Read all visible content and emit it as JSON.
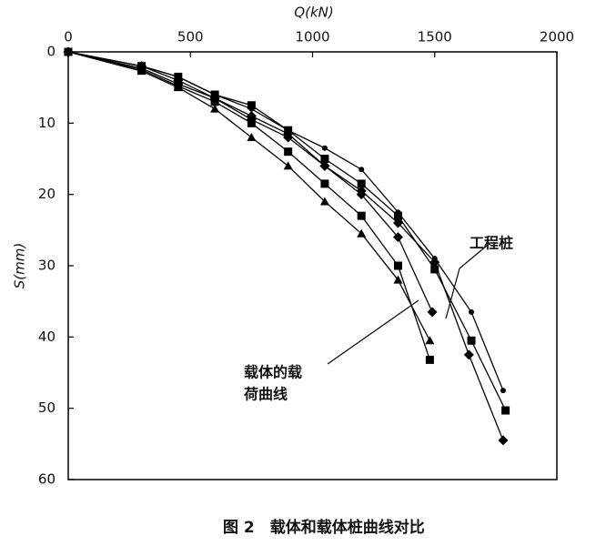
{
  "chart_data": {
    "type": "line",
    "x_label": "Q(kN)",
    "y_label": "S(mm)",
    "xlim": [
      0,
      2000
    ],
    "xticks": [
      0,
      500,
      1000,
      1500,
      2000
    ],
    "ylim": [
      0,
      60
    ],
    "yticks": [
      0,
      10,
      20,
      30,
      40,
      50,
      60
    ],
    "y_inverted": true,
    "x_axis_position": "top",
    "series": [
      {
        "color": "#000000",
        "marker": "triangle",
        "x": [
          0,
          300,
          450,
          600,
          750,
          900,
          1050,
          1200,
          1350,
          1480
        ],
        "values": [
          0,
          2.7,
          5,
          8,
          12,
          16,
          21,
          25.5,
          32,
          40.5
        ]
      },
      {
        "color": "#000000",
        "marker": "square",
        "x": [
          0,
          300,
          450,
          600,
          750,
          900,
          1050,
          1200,
          1350,
          1480
        ],
        "values": [
          0,
          2.5,
          4.8,
          7,
          10,
          14,
          18.5,
          23,
          30,
          43.2
        ]
      },
      {
        "color": "#000000",
        "marker": "diamond",
        "x": [
          0,
          300,
          450,
          600,
          750,
          900,
          1050,
          1200,
          1350,
          1490
        ],
        "values": [
          0,
          2.3,
          4.5,
          6.5,
          9.5,
          12,
          16,
          20,
          26,
          36.5
        ]
      },
      {
        "color": "#000000",
        "marker": "circle",
        "x": [
          0,
          300,
          450,
          600,
          750,
          900,
          1050,
          1200,
          1350,
          1500,
          1650,
          1780
        ],
        "values": [
          0,
          2,
          3.5,
          6,
          8,
          11,
          13.5,
          16.5,
          22.5,
          29,
          36.5,
          47.5
        ]
      },
      {
        "color": "#000000",
        "marker": "square",
        "x": [
          0,
          300,
          450,
          600,
          750,
          900,
          1050,
          1200,
          1350,
          1500,
          1650,
          1790
        ],
        "values": [
          0,
          2,
          3.5,
          6,
          7.5,
          11,
          15,
          18.5,
          23,
          30.5,
          40.5,
          50.3
        ]
      },
      {
        "color": "#000000",
        "marker": "diamond",
        "x": [
          0,
          300,
          450,
          600,
          750,
          900,
          1050,
          1200,
          1350,
          1500,
          1640,
          1780
        ],
        "values": [
          0,
          2,
          4,
          6.5,
          9,
          11.5,
          16,
          19.5,
          24,
          29.5,
          42.5,
          54.5
        ]
      }
    ],
    "annotations": [
      {
        "lines": [
          "工程桩"
        ]
      },
      {
        "lines": [
          "载体的载",
          "荷曲线"
        ]
      }
    ],
    "caption": "图 2　载体和载体桩曲线对比"
  }
}
